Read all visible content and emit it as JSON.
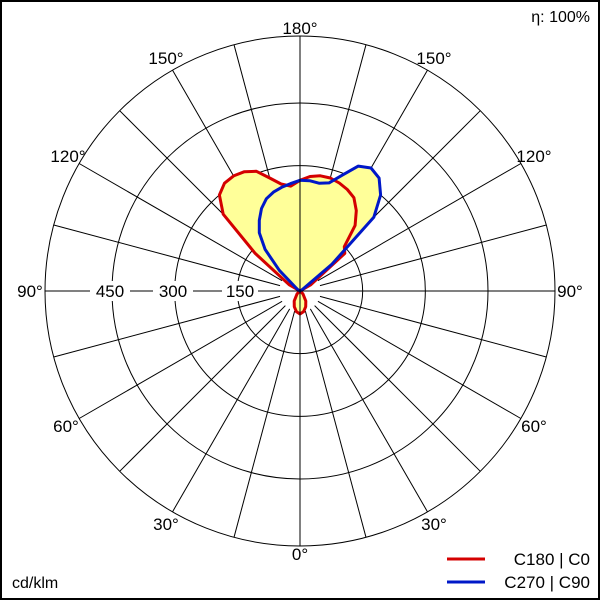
{
  "chart_data": {
    "type": "polar",
    "efficiency_label": "η: 100%",
    "unit_label": "cd/klm",
    "radial_ticks": [
      150,
      300,
      450
    ],
    "angle_labels": {
      "top": "180°",
      "upper_left": "150°",
      "upper_right": "150°",
      "mid_upper_left": "120°",
      "mid_upper_right": "120°",
      "left": "90°",
      "right": "90°",
      "lower_left": "60°",
      "lower_right": "60°",
      "bottom_left": "30°",
      "bottom_right": "30°",
      "bottom": "0°"
    },
    "series": [
      {
        "name": "C180 | C0",
        "color": "#d40000",
        "points": [
          {
            "theta": 0,
            "left": 55,
            "right": 55
          },
          {
            "theta": 10,
            "left": 50,
            "right": 50
          },
          {
            "theta": 20,
            "left": 40,
            "right": 40
          },
          {
            "theta": 30,
            "left": 28,
            "right": 28
          },
          {
            "theta": 45,
            "left": 10,
            "right": 10
          },
          {
            "theta": 60,
            "left": 2,
            "right": 2
          },
          {
            "theta": 90,
            "left": 0,
            "right": 0
          },
          {
            "theta": 120,
            "left": 30,
            "right": 30
          },
          {
            "theta": 130,
            "left": 140,
            "right": 140
          },
          {
            "theta": 135,
            "left": 260,
            "right": 150
          },
          {
            "theta": 140,
            "left": 300,
            "right": 205
          },
          {
            "theta": 145,
            "left": 315,
            "right": 235
          },
          {
            "theta": 150,
            "left": 318,
            "right": 258
          },
          {
            "theta": 155,
            "left": 315,
            "right": 268
          },
          {
            "theta": 160,
            "left": 305,
            "right": 275
          },
          {
            "theta": 165,
            "left": 280,
            "right": 280
          },
          {
            "theta": 170,
            "left": 260,
            "right": 280
          },
          {
            "theta": 175,
            "left": 252,
            "right": 275
          },
          {
            "theta": 180,
            "left": 265,
            "right": 265
          }
        ]
      },
      {
        "name": "C270 | C90",
        "color": "#0018c8",
        "points": [
          {
            "theta": 0,
            "left": 0,
            "right": 0
          },
          {
            "theta": 90,
            "left": 0,
            "right": 0
          },
          {
            "theta": 120,
            "left": 5,
            "right": 5
          },
          {
            "theta": 130,
            "left": 15,
            "right": 100
          },
          {
            "theta": 135,
            "left": 70,
            "right": 250
          },
          {
            "theta": 140,
            "left": 130,
            "right": 300
          },
          {
            "theta": 145,
            "left": 170,
            "right": 330
          },
          {
            "theta": 150,
            "left": 195,
            "right": 340
          },
          {
            "theta": 155,
            "left": 218,
            "right": 330
          },
          {
            "theta": 160,
            "left": 235,
            "right": 295
          },
          {
            "theta": 165,
            "left": 245,
            "right": 268
          },
          {
            "theta": 170,
            "left": 252,
            "right": 262
          },
          {
            "theta": 175,
            "left": 258,
            "right": 265
          },
          {
            "theta": 180,
            "left": 265,
            "right": 265
          }
        ]
      }
    ]
  }
}
